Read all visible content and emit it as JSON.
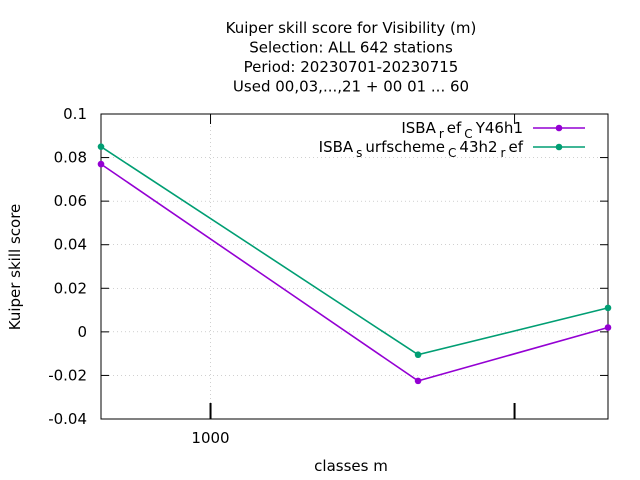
{
  "chart_data": {
    "type": "line",
    "title_lines": [
      "Kuiper skill score  for Visibility (m)",
      "Selection: ALL    642 stations",
      "Period: 20230701-20230715",
      "Used  00,03,...,21  + 00 01 ... 60"
    ],
    "xlabel": "classes m",
    "ylabel": "Kuiper skill score",
    "x_scale": "log",
    "xlim": [
      560,
      8200
    ],
    "ylim": [
      -0.04,
      0.1
    ],
    "y_ticks": [
      "-0.04",
      "-0.02",
      "0",
      "0.02",
      "0.04",
      "0.06",
      "0.08",
      "0.1"
    ],
    "x_tick_labels": [
      {
        "value": 1000,
        "label": "1000"
      }
    ],
    "x_tick_marks": [
      1000,
      5000
    ],
    "grid": true,
    "legend_position": "top-right",
    "series": [
      {
        "legend": {
          "base": "ISBA",
          "parts": [
            [
              "sub",
              "r"
            ],
            [
              "normal",
              "ef"
            ],
            [
              "sub",
              "C"
            ],
            [
              "normal",
              "Y46h1"
            ]
          ]
        },
        "color": "#9400d3",
        "points": [
          [
            560,
            0.077
          ],
          [
            3000,
            -0.0225
          ],
          [
            8200,
            0.002
          ]
        ]
      },
      {
        "legend": {
          "base": "ISBA",
          "parts": [
            [
              "sub",
              "s"
            ],
            [
              "normal",
              "urfscheme"
            ],
            [
              "sub",
              "C"
            ],
            [
              "normal",
              "43h2"
            ],
            [
              "sub",
              "r"
            ],
            [
              "normal",
              "ef"
            ]
          ]
        },
        "color": "#009e73",
        "points": [
          [
            560,
            0.085
          ],
          [
            3000,
            -0.0105
          ],
          [
            8200,
            0.011
          ]
        ]
      }
    ]
  }
}
